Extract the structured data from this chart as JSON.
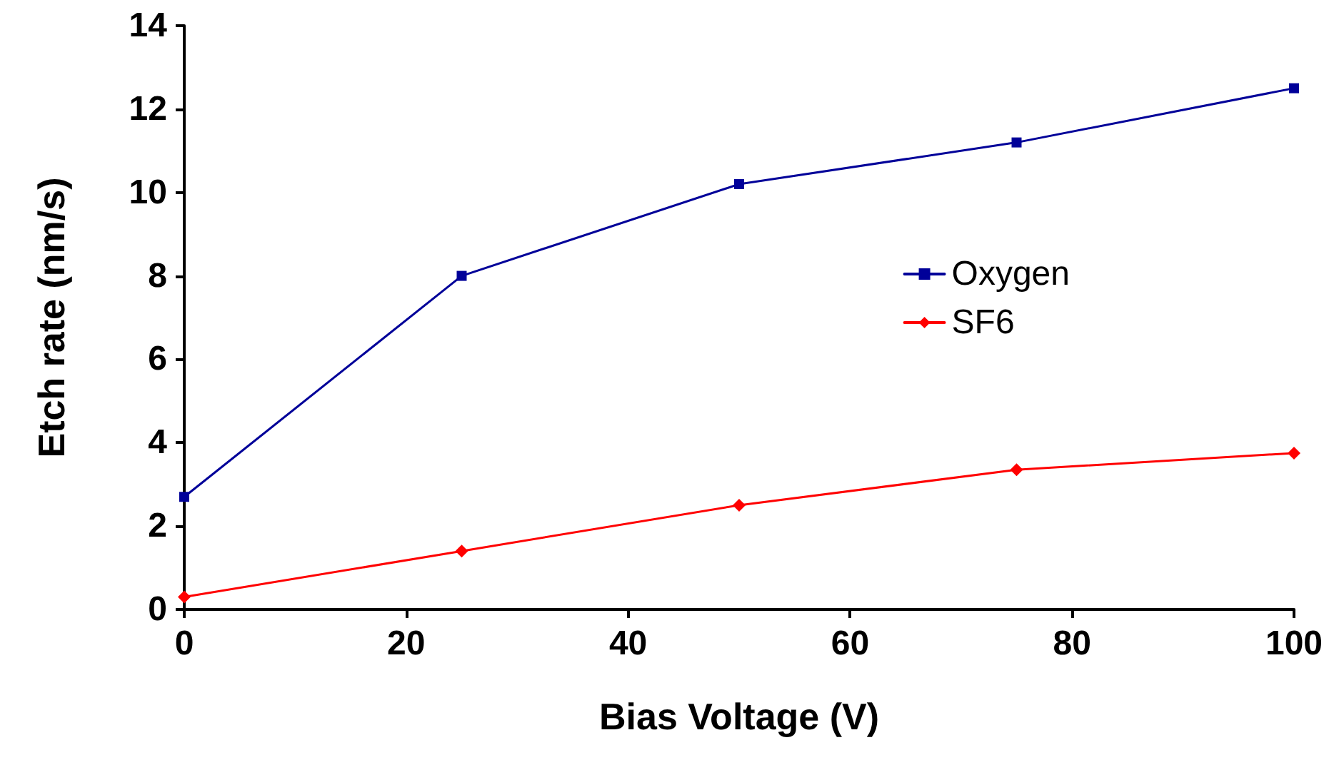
{
  "chart_data": {
    "type": "line",
    "xlabel": "Bias Voltage (V)",
    "ylabel": "Etch rate (nm/s)",
    "x": [
      0,
      25,
      50,
      75,
      100
    ],
    "series": [
      {
        "name": "Oxygen",
        "color": "#000099",
        "marker": "square",
        "values": [
          2.7,
          8.0,
          10.2,
          11.2,
          12.5
        ]
      },
      {
        "name": "SF6",
        "color": "#ff0000",
        "marker": "diamond",
        "values": [
          0.3,
          1.4,
          2.5,
          3.35,
          3.75
        ]
      }
    ],
    "xlim": [
      0,
      100
    ],
    "xticks": [
      0,
      20,
      40,
      60,
      80,
      100
    ],
    "ylim": [
      0,
      14
    ],
    "yticks": [
      0,
      2,
      4,
      6,
      8,
      10,
      12,
      14
    ],
    "grid": false,
    "legend": "right",
    "line_style": "solid"
  }
}
